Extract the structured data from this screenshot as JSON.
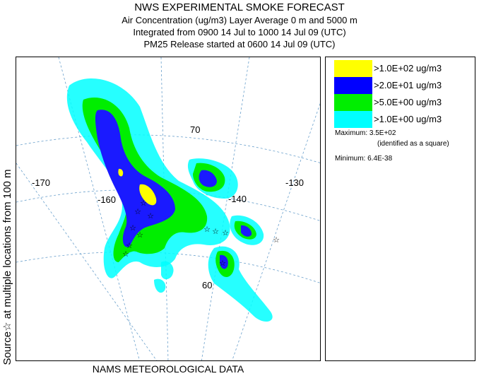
{
  "title": "NWS EXPERIMENTAL SMOKE FORECAST",
  "subtitle_lines": [
    "Air Concentration (ug/m3) Layer Average    0 m and  5000 m",
    "Integrated from 0900 14 Jul to 1000 14 Jul 09 (UTC)",
    "PM25 Release started at 0600 14 Jul 09 (UTC)"
  ],
  "side_label": "Source☆ at multiple locations   from   100 m",
  "footer": "NAMS METEOROLOGICAL DATA",
  "map": {
    "lat_labels": [
      "70",
      "60"
    ],
    "lon_labels": [
      "-170",
      "-160",
      "-140",
      "-130"
    ],
    "source_marker": "☆"
  },
  "legend": {
    "entries": [
      {
        "label": ">1.0E+02 ug/m3",
        "color": "#ffff00"
      },
      {
        "label": ">2.0E+01 ug/m3",
        "color": "#0000ff"
      },
      {
        "label": ">5.0E+00 ug/m3",
        "color": "#00ee00"
      },
      {
        "label": ">1.0E+00 ug/m3",
        "color": "#00ffff"
      }
    ],
    "maximum": "Maximum: 3.5E+02",
    "maximum_note": "(identified as a square)",
    "minimum": "Minimum: 6.4E-38"
  }
}
